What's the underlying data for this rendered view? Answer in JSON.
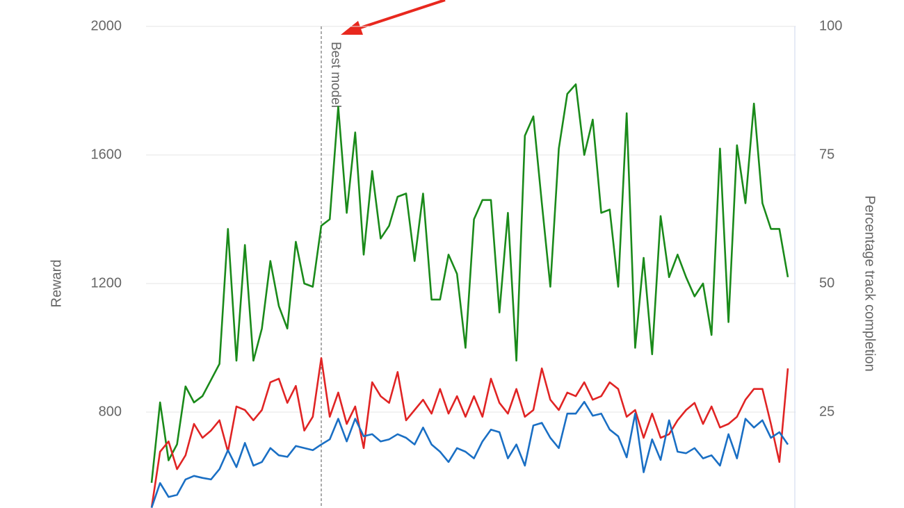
{
  "chart_data": {
    "type": "line",
    "y_label": "Reward",
    "y2_label": "Percentage track completion",
    "ylim": [
      500,
      2000
    ],
    "yticks": [
      800,
      1200,
      1600,
      2000
    ],
    "y2lim": [
      6.25,
      100
    ],
    "y2ticks": [
      25,
      50,
      75,
      100
    ],
    "grid": true,
    "annotations": [
      {
        "text": "Best model",
        "category": 20
      }
    ],
    "categories": [
      null,
      null,
      null,
      null,
      null,
      null,
      null,
      null,
      null,
      null,
      null,
      null,
      null,
      null,
      null,
      null,
      null,
      null,
      null,
      null,
      null,
      null,
      null,
      null,
      null,
      null,
      null,
      null,
      null,
      null,
      null,
      null,
      null,
      null,
      null,
      null,
      null,
      null,
      null,
      null,
      null,
      null,
      null,
      null,
      null,
      null,
      null,
      null,
      null,
      null,
      null,
      null,
      null,
      null,
      null,
      null,
      null,
      null,
      null,
      null,
      null,
      null,
      null,
      null,
      null,
      null,
      null,
      null,
      null,
      null,
      null,
      null,
      null,
      null,
      null,
      null
    ],
    "series": [
      {
        "color": "#1a8a1a",
        "values": [
          580,
          830,
          650,
          700,
          880,
          830,
          850,
          900,
          950,
          1370,
          960,
          1320,
          960,
          1060,
          1270,
          1130,
          1060,
          1330,
          1200,
          1190,
          1380,
          1400,
          1750,
          1420,
          1670,
          1290,
          1550,
          1340,
          1380,
          1470,
          1480,
          1270,
          1480,
          1150,
          1150,
          1290,
          1230,
          1000,
          1400,
          1460,
          1460,
          1110,
          1420,
          960,
          1660,
          1720,
          1450,
          1190,
          1620,
          1790,
          1820,
          1600,
          1710,
          1420,
          1430,
          1190,
          1730,
          1000,
          1280,
          980,
          1410,
          1220,
          1290,
          1220,
          1160,
          1200,
          1040,
          1620,
          1080,
          1630,
          1450,
          1760,
          1450,
          1370,
          1370,
          1220
        ]
      },
      {
        "color": "#e02424",
        "axis": "y2",
        "values": [
          6.4,
          17.3,
          19.3,
          13.9,
          16.6,
          22.7,
          20,
          21.4,
          23.4,
          17.3,
          26.1,
          25.4,
          23.4,
          25.4,
          30.8,
          31.5,
          26.8,
          30.1,
          21.4,
          24.1,
          35.5,
          24.1,
          28.8,
          22.7,
          26.1,
          18,
          30.8,
          28.1,
          26.8,
          32.8,
          23.4,
          25.4,
          27.4,
          24.7,
          29.5,
          24.7,
          28.1,
          24.1,
          28.1,
          24.1,
          31.5,
          26.8,
          24.7,
          29.5,
          24.1,
          25.4,
          33.5,
          27.4,
          25.4,
          28.8,
          28.1,
          30.8,
          27.4,
          28.1,
          30.8,
          29.5,
          24.1,
          25.4,
          20,
          24.7,
          20,
          20.7,
          23.4,
          25.4,
          26.8,
          22.7,
          26.1,
          22,
          22.7,
          24.1,
          27.4,
          29.5,
          29.5,
          22.7,
          15.3,
          33.5
        ]
      },
      {
        "color": "#1a6fc4",
        "axis": "y2",
        "values": [
          6.4,
          11.2,
          8.5,
          8.9,
          11.9,
          12.6,
          12.2,
          11.9,
          13.9,
          17.6,
          14.3,
          19,
          14.6,
          15.3,
          18,
          16.6,
          16.3,
          18.4,
          18,
          17.6,
          18.7,
          19.7,
          23.7,
          19.3,
          23.7,
          20.3,
          20.7,
          19.3,
          19.7,
          20.7,
          20,
          18.7,
          22,
          18.7,
          17.3,
          15.3,
          18,
          17.3,
          16,
          19.3,
          21.6,
          21.1,
          16,
          18.7,
          14.6,
          22.4,
          22.9,
          20,
          18,
          24.7,
          24.7,
          27,
          24.3,
          24.7,
          21.6,
          20.3,
          16.2,
          24.7,
          13.3,
          19.7,
          15.7,
          23.4,
          17.3,
          17,
          18,
          16,
          16.6,
          14.6,
          20.7,
          16,
          23.7,
          22,
          23.4,
          20,
          21.1,
          18.7
        ]
      }
    ]
  }
}
